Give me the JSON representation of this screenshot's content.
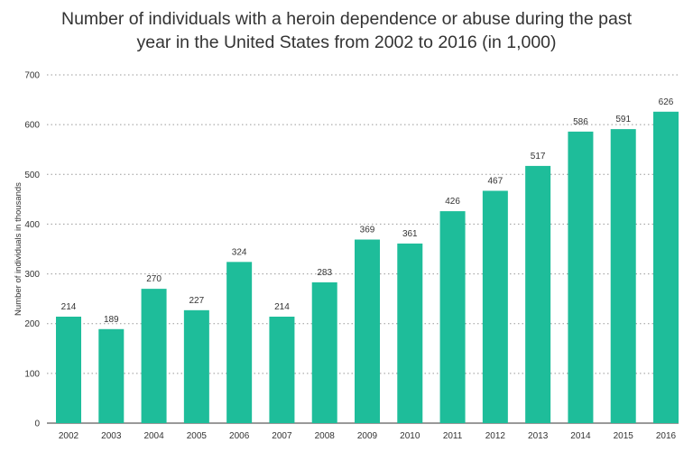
{
  "chart_data": {
    "type": "bar",
    "title_lines": [
      "Number of individuals with a heroin dependence or abuse during the past",
      "year in the United States from 2002 to 2016 (in 1,000)"
    ],
    "xlabel": "",
    "ylabel": "Number of individuals in thousands",
    "categories": [
      "2002",
      "2003",
      "2004",
      "2005",
      "2006",
      "2007",
      "2008",
      "2009",
      "2010",
      "2011",
      "2012",
      "2013",
      "2014",
      "2015",
      "2016"
    ],
    "values": [
      214,
      189,
      270,
      227,
      324,
      214,
      283,
      369,
      361,
      426,
      467,
      517,
      586,
      591,
      626
    ],
    "ylim": [
      0,
      700
    ],
    "yticks": [
      0,
      100,
      200,
      300,
      400,
      500,
      600,
      700
    ],
    "grid": true,
    "data_labels": true,
    "bar_color": "#1ebd9a"
  }
}
